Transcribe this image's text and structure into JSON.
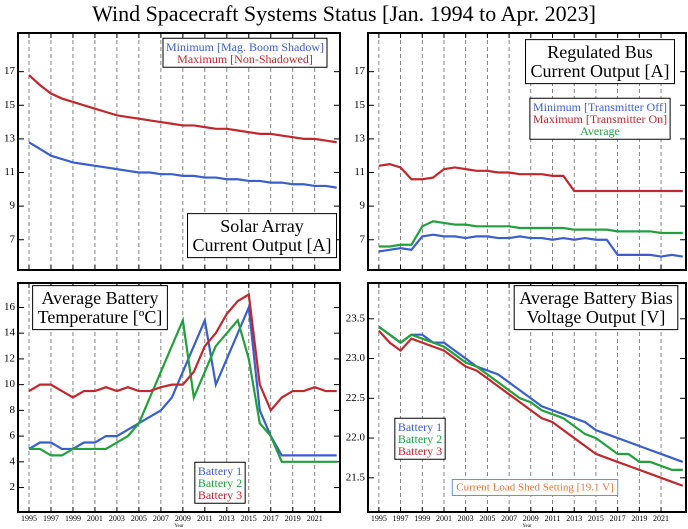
{
  "title": "Wind Spacecraft Systems Status [Jan. 1994 to Apr. 2023]",
  "chart_data": [
    {
      "type": "line",
      "label": [
        "Solar Array",
        "Current Output [A]"
      ],
      "xlabel": "Year",
      "legend": "upper right",
      "grid": "x",
      "x": [
        1995,
        1996,
        1997,
        1998,
        1999,
        2000,
        2001,
        2002,
        2003,
        2004,
        2005,
        2006,
        2007,
        2008,
        2009,
        2010,
        2011,
        2012,
        2013,
        2014,
        2015,
        2016,
        2017,
        2018,
        2019,
        2020,
        2021,
        2022,
        2023
      ],
      "xlim": [
        1994,
        2023.3
      ],
      "xticks": [
        1995,
        1997,
        1999,
        2001,
        2003,
        2005,
        2007,
        2009,
        2011,
        2013,
        2015,
        2017,
        2019,
        2021
      ],
      "ylim": [
        5.2,
        19.3
      ],
      "yticks": [
        7,
        9,
        11,
        13,
        15,
        17
      ],
      "series": [
        {
          "name": "Minimum [Mag. Boom Shadow]",
          "color": "#3a5fcd",
          "values": [
            12.8,
            12.4,
            12.0,
            11.8,
            11.6,
            11.5,
            11.4,
            11.3,
            11.2,
            11.1,
            11.0,
            11.0,
            10.9,
            10.9,
            10.8,
            10.8,
            10.7,
            10.7,
            10.6,
            10.6,
            10.5,
            10.5,
            10.4,
            10.4,
            10.3,
            10.3,
            10.2,
            10.2,
            10.1
          ]
        },
        {
          "name": "Maximum [Non-Shadowed]",
          "color": "#c0282d",
          "values": [
            16.8,
            16.2,
            15.7,
            15.4,
            15.2,
            15.0,
            14.8,
            14.6,
            14.4,
            14.3,
            14.2,
            14.1,
            14.0,
            13.9,
            13.8,
            13.8,
            13.7,
            13.6,
            13.6,
            13.5,
            13.4,
            13.3,
            13.3,
            13.2,
            13.1,
            13.0,
            13.0,
            12.9,
            12.8
          ]
        }
      ]
    },
    {
      "type": "line",
      "label": [
        "Regulated Bus",
        "Current Output [A]"
      ],
      "xlabel": "Year",
      "legend": "upper right",
      "grid": "x",
      "x": [
        1995,
        1996,
        1997,
        1998,
        1999,
        2000,
        2001,
        2002,
        2003,
        2004,
        2005,
        2006,
        2007,
        2008,
        2009,
        2010,
        2011,
        2012,
        2013,
        2014,
        2015,
        2016,
        2017,
        2018,
        2019,
        2020,
        2021,
        2022,
        2023
      ],
      "xlim": [
        1994,
        2023.3
      ],
      "xticks": [
        1995,
        1997,
        1999,
        2001,
        2003,
        2005,
        2007,
        2009,
        2011,
        2013,
        2015,
        2017,
        2019,
        2021
      ],
      "ylim": [
        5.2,
        19.3
      ],
      "yticks": [
        7,
        9,
        11,
        13,
        15,
        17
      ],
      "series": [
        {
          "name": "Minimum [Transmitter Off]",
          "color": "#3a5fcd",
          "values": [
            6.3,
            6.4,
            6.5,
            6.4,
            7.2,
            7.3,
            7.2,
            7.2,
            7.1,
            7.2,
            7.2,
            7.1,
            7.1,
            7.2,
            7.1,
            7.1,
            7.0,
            7.1,
            7.0,
            7.1,
            7.0,
            7.0,
            6.1,
            6.1,
            6.1,
            6.1,
            6.0,
            6.1,
            6.0
          ]
        },
        {
          "name": "Maximum [Transmitter On]",
          "color": "#c0282d",
          "values": [
            11.4,
            11.5,
            11.3,
            10.6,
            10.6,
            10.7,
            11.2,
            11.3,
            11.2,
            11.1,
            11.1,
            11.0,
            11.0,
            10.9,
            10.9,
            10.9,
            10.8,
            10.8,
            9.9,
            9.9,
            9.9,
            9.9,
            9.9,
            9.9,
            9.9,
            9.9,
            9.9,
            9.9,
            9.9
          ]
        },
        {
          "name": "Average",
          "color": "#22a03c",
          "values": [
            6.6,
            6.6,
            6.7,
            6.7,
            7.8,
            8.1,
            8.0,
            7.9,
            7.9,
            7.8,
            7.8,
            7.8,
            7.8,
            7.7,
            7.7,
            7.7,
            7.7,
            7.7,
            7.6,
            7.6,
            7.6,
            7.6,
            7.5,
            7.5,
            7.5,
            7.5,
            7.4,
            7.4,
            7.4
          ]
        }
      ]
    },
    {
      "type": "line",
      "label": [
        "Average Battery",
        "Temperature [ºC]"
      ],
      "xlabel": "Year",
      "legend": "lower center",
      "grid": "x",
      "x": [
        1995,
        1996,
        1997,
        1998,
        1999,
        2000,
        2001,
        2002,
        2003,
        2004,
        2005,
        2006,
        2007,
        2008,
        2009,
        2010,
        2011,
        2012,
        2013,
        2014,
        2015,
        2016,
        2017,
        2018,
        2019,
        2020,
        2021,
        2022,
        2023
      ],
      "xlim": [
        1994,
        2023.3
      ],
      "xticks": [
        1995,
        1997,
        1999,
        2001,
        2003,
        2005,
        2007,
        2009,
        2011,
        2013,
        2015,
        2017,
        2019,
        2021
      ],
      "ylim": [
        0.1,
        17.9
      ],
      "yticks": [
        2,
        4,
        6,
        8,
        10,
        12,
        14,
        16
      ],
      "series": [
        {
          "name": "Battery 1",
          "color": "#3a5fcd",
          "values": [
            5,
            5.5,
            5.5,
            5,
            5,
            5.5,
            5.5,
            6,
            6,
            6.5,
            7,
            7.5,
            8,
            9,
            11,
            13,
            15,
            10,
            12,
            14,
            16,
            8,
            6,
            4.5,
            4.5,
            4.5,
            4.5,
            4.5,
            4.5
          ]
        },
        {
          "name": "Battery 2",
          "color": "#22a03c",
          "values": [
            5,
            5,
            4.5,
            4.5,
            5,
            5,
            5,
            5,
            5.5,
            6,
            7,
            9,
            11,
            13,
            15,
            9,
            11,
            13,
            14,
            15,
            12,
            7,
            6,
            4,
            4,
            4,
            4,
            4,
            4
          ]
        },
        {
          "name": "Battery 3",
          "color": "#c0282d",
          "values": [
            9.5,
            10,
            10,
            9.5,
            9,
            9.5,
            9.5,
            9.8,
            9.5,
            9.8,
            9.5,
            9.5,
            9.8,
            10,
            10,
            11,
            13,
            14,
            15.5,
            16.5,
            17,
            10,
            8,
            9,
            9.5,
            9.5,
            9.8,
            9.5,
            9.5
          ]
        }
      ]
    },
    {
      "type": "line",
      "label": [
        "Average Battery Bias",
        "Voltage Output [V]"
      ],
      "xlabel": "Year",
      "legend": "lower left",
      "grid": "x",
      "annotation": "Current Load Shed Setting [19.1 V]",
      "x": [
        1995,
        1996,
        1997,
        1998,
        1999,
        2000,
        2001,
        2002,
        2003,
        2004,
        2005,
        2006,
        2007,
        2008,
        2009,
        2010,
        2011,
        2012,
        2013,
        2014,
        2015,
        2016,
        2017,
        2018,
        2019,
        2020,
        2021,
        2022,
        2023
      ],
      "xlim": [
        1994,
        2023.3
      ],
      "xticks": [
        1995,
        1997,
        1999,
        2001,
        2003,
        2005,
        2007,
        2009,
        2011,
        2013,
        2015,
        2017,
        2019,
        2021
      ],
      "ylim": [
        21.07,
        23.95
      ],
      "yticks": [
        21.5,
        {
          "value": 22,
          "label": "22.0"
        },
        22.5,
        {
          "value": 23,
          "label": "23.0"
        },
        23.5
      ],
      "series": [
        {
          "name": "Battery 1",
          "color": "#3a5fcd",
          "values": [
            23.4,
            23.3,
            23.2,
            23.3,
            23.3,
            23.2,
            23.2,
            23.1,
            23.0,
            22.9,
            22.85,
            22.8,
            22.7,
            22.6,
            22.5,
            22.4,
            22.35,
            22.3,
            22.25,
            22.2,
            22.1,
            22.05,
            22.0,
            21.95,
            21.9,
            21.85,
            21.8,
            21.75,
            21.7
          ]
        },
        {
          "name": "Battery 2",
          "color": "#22a03c",
          "values": [
            23.4,
            23.3,
            23.2,
            23.3,
            23.25,
            23.2,
            23.15,
            23.05,
            22.95,
            22.9,
            22.8,
            22.7,
            22.6,
            22.5,
            22.45,
            22.35,
            22.3,
            22.25,
            22.15,
            22.05,
            22.0,
            21.9,
            21.8,
            21.8,
            21.7,
            21.7,
            21.65,
            21.6,
            21.6
          ]
        },
        {
          "name": "Battery 3",
          "color": "#c0282d",
          "values": [
            23.35,
            23.2,
            23.1,
            23.25,
            23.2,
            23.15,
            23.1,
            23.0,
            22.9,
            22.85,
            22.75,
            22.65,
            22.55,
            22.45,
            22.35,
            22.25,
            22.2,
            22.1,
            22.0,
            21.9,
            21.8,
            21.75,
            21.7,
            21.65,
            21.6,
            21.55,
            21.5,
            21.45,
            21.4
          ]
        }
      ]
    }
  ]
}
